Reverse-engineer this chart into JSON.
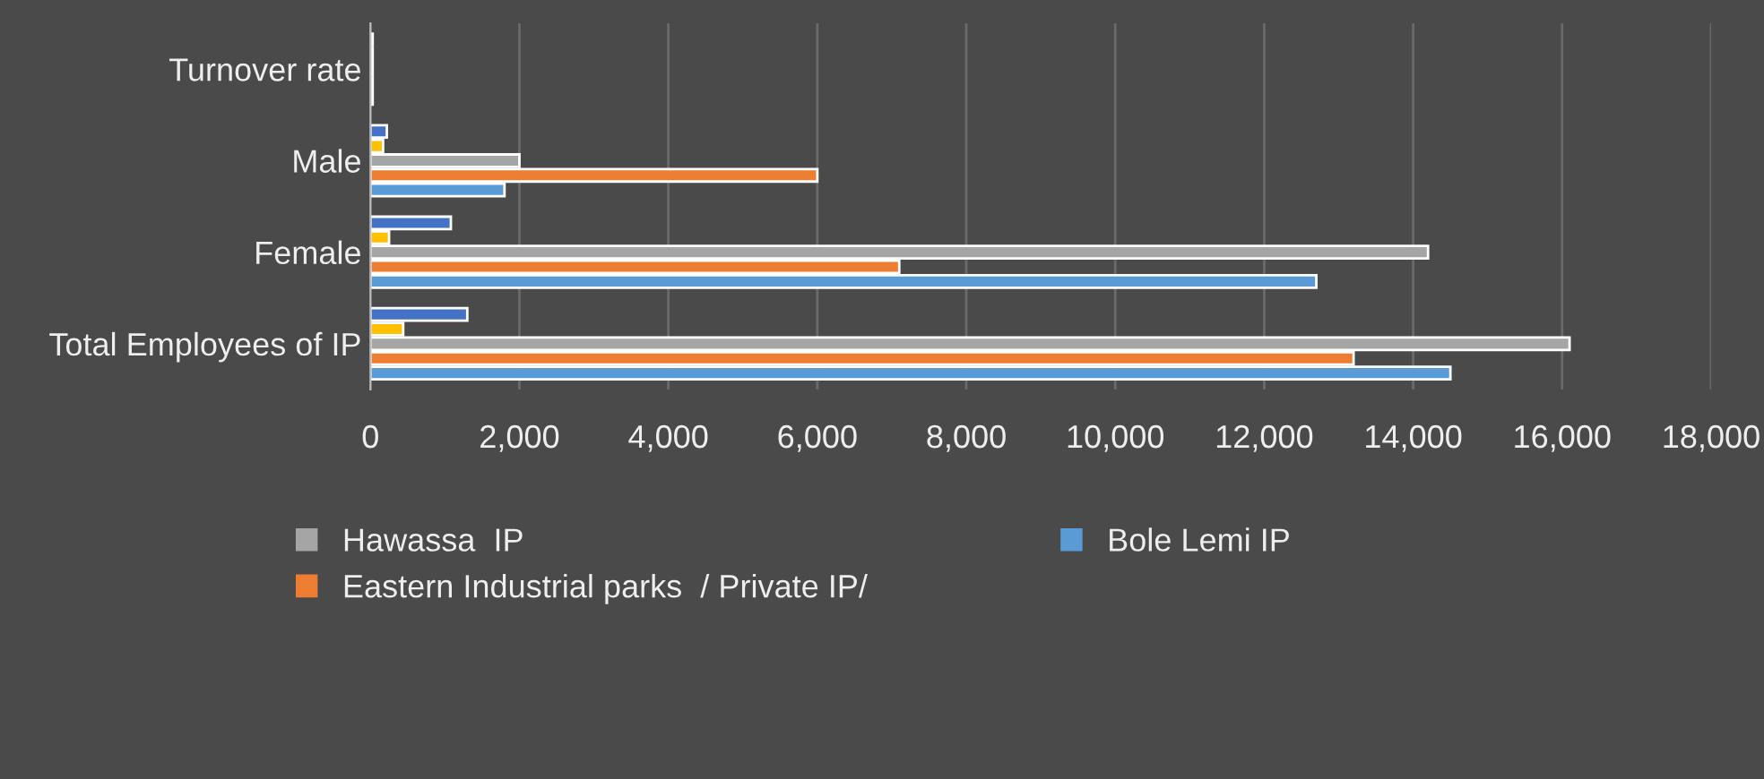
{
  "chart_data": {
    "type": "bar",
    "orientation": "horizontal",
    "categories": [
      "Turnover rate",
      "Male",
      "Female",
      "Total Employees of IP"
    ],
    "series": [
      {
        "color": "#4472c4",
        "values": [
          30,
          220,
          1080,
          1300
        ]
      },
      {
        "color": "#ffc000",
        "values": [
          30,
          170,
          250,
          440
        ]
      },
      {
        "name": "Hawassa  IP",
        "color": "#a5a5a5",
        "values": [
          30,
          2000,
          14200,
          16100
        ]
      },
      {
        "name": "Eastern Industrial parks  / Private IP/",
        "color": "#ed7d31",
        "values": [
          30,
          6000,
          7100,
          13200
        ]
      },
      {
        "name": "Bole Lemi IP",
        "color": "#5b9bd5",
        "values": [
          30,
          1800,
          12700,
          14500
        ]
      }
    ],
    "xlim": [
      0,
      18000
    ],
    "xticks": [
      {
        "value": 0,
        "label": "0"
      },
      {
        "value": 2000,
        "label": "2,000"
      },
      {
        "value": 4000,
        "label": "4,000"
      },
      {
        "value": 6000,
        "label": "6,000"
      },
      {
        "value": 8000,
        "label": "8,000"
      },
      {
        "value": 10000,
        "label": "10,000"
      },
      {
        "value": 12000,
        "label": "12,000"
      },
      {
        "value": 14000,
        "label": "14,000"
      },
      {
        "value": 16000,
        "label": "16,000"
      },
      {
        "value": 18000,
        "label": "18,000"
      }
    ],
    "grid": "x",
    "legend": "bottom"
  }
}
